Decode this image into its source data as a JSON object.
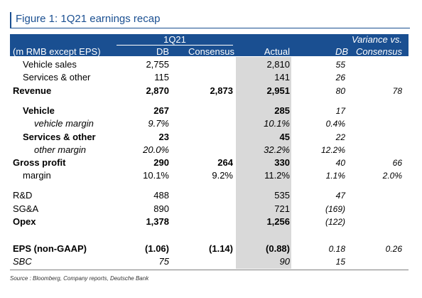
{
  "title": "Figure 1: 1Q21 earnings recap",
  "header": {
    "period": "1Q21",
    "variance": "Variance vs.",
    "units": "(m RMB except EPS)",
    "col_db": "DB",
    "col_consensus": "Consensus",
    "col_actual": "Actual",
    "col_var_db": "DB",
    "col_var_consensus": "Consensus"
  },
  "rows": [
    {
      "label": "Vehicle sales",
      "db": "2,755",
      "consensus": "",
      "actual": "2,810",
      "var_db": "55",
      "var_consensus": ""
    },
    {
      "label": "Services & other",
      "db": "115",
      "consensus": "",
      "actual": "141",
      "var_db": "26",
      "var_consensus": ""
    },
    {
      "label": "Revenue",
      "db": "2,870",
      "consensus": "2,873",
      "actual": "2,951",
      "var_db": "80",
      "var_consensus": "78"
    },
    {
      "label": "Vehicle",
      "db": "267",
      "consensus": "",
      "actual": "285",
      "var_db": "17",
      "var_consensus": ""
    },
    {
      "label": "vehicle margin",
      "db": "9.7%",
      "consensus": "",
      "actual": "10.1%",
      "var_db": "0.4%",
      "var_consensus": ""
    },
    {
      "label": "Services & other",
      "db": "23",
      "consensus": "",
      "actual": "45",
      "var_db": "22",
      "var_consensus": ""
    },
    {
      "label": "other margin",
      "db": "20.0%",
      "consensus": "",
      "actual": "32.2%",
      "var_db": "12.2%",
      "var_consensus": ""
    },
    {
      "label": "Gross profit",
      "db": "290",
      "consensus": "264",
      "actual": "330",
      "var_db": "40",
      "var_consensus": "66"
    },
    {
      "label": "margin",
      "db": "10.1%",
      "consensus": "9.2%",
      "actual": "11.2%",
      "var_db": "1.1%",
      "var_consensus": "2.0%"
    },
    {
      "label": "R&D",
      "db": "488",
      "consensus": "",
      "actual": "535",
      "var_db": "47",
      "var_consensus": ""
    },
    {
      "label": "SG&A",
      "db": "890",
      "consensus": "",
      "actual": "721",
      "var_db": "(169)",
      "var_consensus": ""
    },
    {
      "label": "Opex",
      "db": "1,378",
      "consensus": "",
      "actual": "1,256",
      "var_db": "(122)",
      "var_consensus": ""
    },
    {
      "label": "EPS (non-GAAP)",
      "db": "(1.06)",
      "consensus": "(1.14)",
      "actual": "(0.88)",
      "var_db": "0.18",
      "var_consensus": "0.26"
    },
    {
      "label": "SBC",
      "db": "75",
      "consensus": "",
      "actual": "90",
      "var_db": "15",
      "var_consensus": ""
    }
  ],
  "source": "Source : Bloomberg, Company reports, Deutsche Bank"
}
